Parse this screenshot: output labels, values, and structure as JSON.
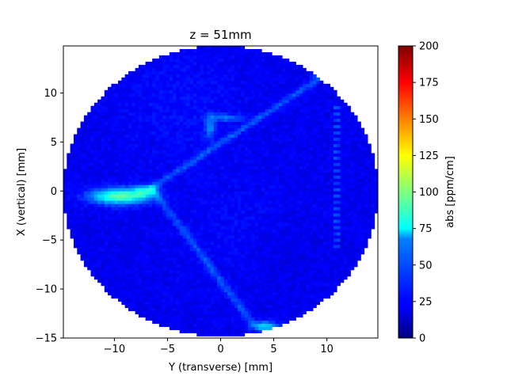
{
  "chart_data": {
    "type": "heatmap",
    "title": "z = 51mm",
    "xlabel": "Y (transverse) [mm]",
    "ylabel": "X (vertical) [mm]",
    "xlim": [
      -14.8,
      14.8
    ],
    "ylim": [
      -15,
      14.8
    ],
    "xticks": [
      -10,
      -5,
      0,
      5,
      10
    ],
    "yticks": [
      -15,
      -10,
      -5,
      0,
      5,
      10
    ],
    "xtick_labels": [
      "−10",
      "−5",
      "0",
      "5",
      "10"
    ],
    "ytick_labels": [
      "−15",
      "−10",
      "−5",
      "0",
      "5",
      "10"
    ],
    "colormap": "jet",
    "colorbar": {
      "label": "abs [ppm/cm]",
      "vmin": 0,
      "vmax": 200,
      "ticks": [
        0,
        25,
        50,
        75,
        100,
        125,
        150,
        175,
        200
      ],
      "tick_labels": [
        "0",
        "25",
        "50",
        "75",
        "100",
        "125",
        "150",
        "175",
        "200"
      ]
    },
    "disk": {
      "center": [
        0,
        0
      ],
      "radius": 14.8,
      "background_value": 22
    },
    "features": [
      {
        "name": "defect-line-upper",
        "from": [
          -6.5,
          0.3
        ],
        "to": [
          10,
          12
        ],
        "value": 40
      },
      {
        "name": "defect-line-lower",
        "from": [
          -6.5,
          0.3
        ],
        "to": [
          3,
          -13.5
        ],
        "value": 40
      },
      {
        "name": "hotspot-left",
        "center": [
          -9.5,
          -0.5
        ],
        "value": 95
      },
      {
        "name": "bright-edge-bottom",
        "center": [
          4.2,
          -13.8
        ],
        "value": 70
      },
      {
        "name": "bright-edge-top",
        "center": [
          9.5,
          12
        ],
        "value": 65
      },
      {
        "name": "blob-upper",
        "center": [
          -1,
          6.5
        ],
        "value": 55
      },
      {
        "name": "dotted-line-right",
        "x": 11,
        "y_range": [
          -6,
          9
        ],
        "value": 38
      }
    ]
  }
}
